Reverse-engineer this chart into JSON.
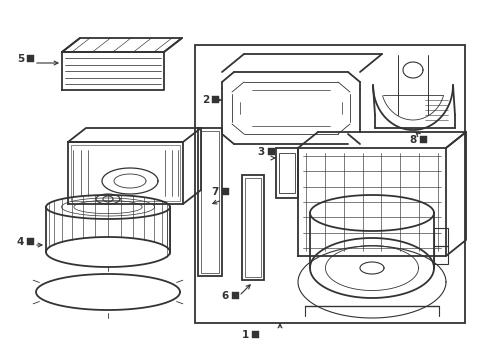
{
  "bg_color": "#ffffff",
  "line_color": "#333333",
  "figsize": [
    4.89,
    3.6
  ],
  "dpi": 100,
  "lw": 0.9
}
